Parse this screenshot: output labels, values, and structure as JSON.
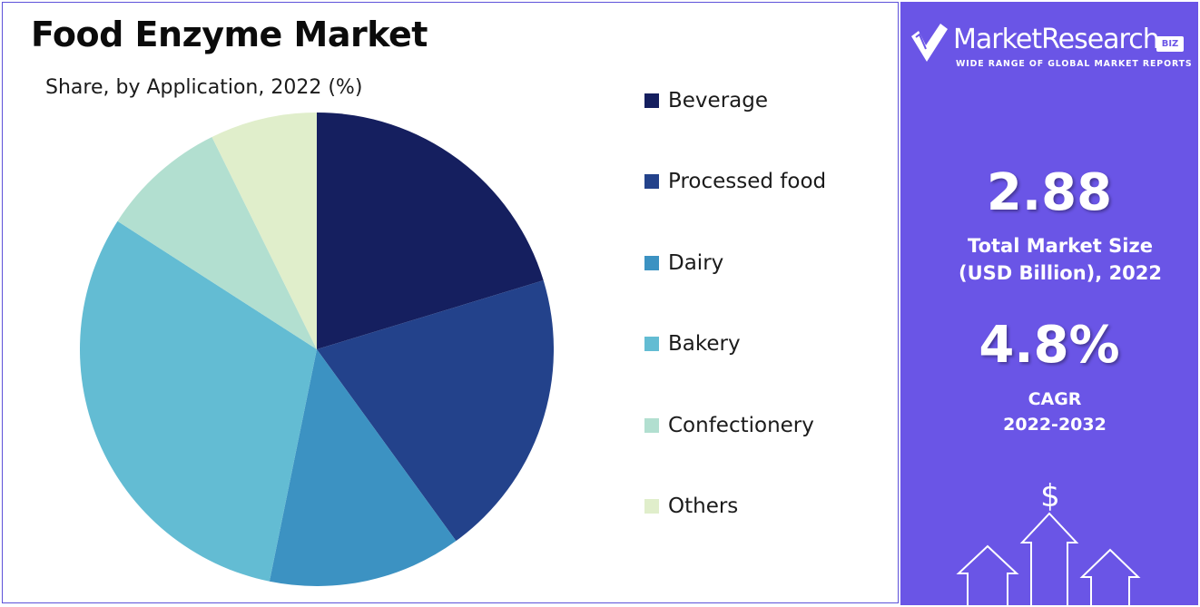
{
  "chart_data": {
    "type": "pie",
    "title": "Food Enzyme Market",
    "subtitle": "Share, by Application, 2022 (%)",
    "categories": [
      "Beverage",
      "Processed food",
      "Dairy",
      "Bakery",
      "Confectionery",
      "Others"
    ],
    "values": [
      20.3,
      19.7,
      13.2,
      30.9,
      8.6,
      7.3
    ],
    "colors": [
      "#151f5f",
      "#23428b",
      "#3c92c2",
      "#63bcd3",
      "#b2dfd0",
      "#e0eecb"
    ],
    "legend_position": "right"
  },
  "brand": {
    "name": "MarketResearch",
    "badge": "BIZ",
    "tagline": "WIDE RANGE OF GLOBAL MARKET REPORTS"
  },
  "stats": {
    "market_size_value": "2.88",
    "market_size_label_line1": "Total Market Size",
    "market_size_label_line2": "(USD Billion), 2022",
    "cagr_value": "4.8%",
    "cagr_label_line1": "CAGR",
    "cagr_label_line2": "2022-2032",
    "currency_symbol": "$"
  },
  "theme": {
    "panel_color": "#6a55e6",
    "border_color": "#5d52d9"
  }
}
